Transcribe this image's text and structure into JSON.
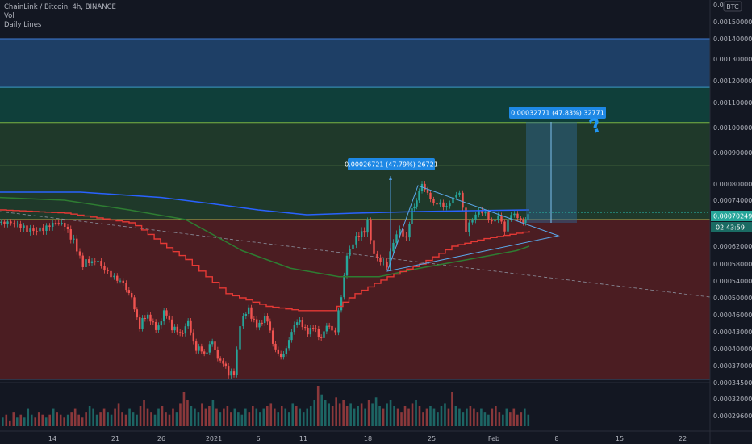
{
  "header": {
    "symbol_line": "ChainLink / Bitcoin, 4h, BINANCE",
    "indicators": [
      "Vol",
      "Daily Lines"
    ]
  },
  "axis": {
    "currency_badge": "BTC",
    "top_label": "0.0",
    "current_price": "0.00070249",
    "countdown": "02:43:59"
  },
  "measures": [
    {
      "label": "0.00026721 (47.79%) 26721"
    },
    {
      "label": "0.00032771 (47.83%) 32771"
    }
  ],
  "annotation": {
    "symbol": "?"
  },
  "colors": {
    "background": "#131722",
    "up": "#26a69a",
    "down": "#ef5350",
    "blue_zone": "#1e3f66",
    "teal_zone": "#0f3f3a",
    "green_zone": "#22402c",
    "red_zone": "#4b1d22",
    "ma_blue": "#2962ff",
    "ma_green": "#2e7d32",
    "ma_red": "#e53935",
    "measure_box": "#2f6a9a",
    "badge_green": "#26a69a",
    "badge_blue": "#1e88e5"
  },
  "chart_data": {
    "type": "candlestick",
    "ylim": [
      0.00034,
      0.0016
    ],
    "y_ticks": [
      "0.00150000",
      "0.00140000",
      "0.00130000",
      "0.00120000",
      "0.00110000",
      "0.00100000",
      "0.00090000",
      "0.00080000",
      "0.00074000",
      "0.00066000",
      "0.00062000",
      "0.00058000",
      "0.00054000",
      "0.00050000",
      "0.00046000",
      "0.00043000",
      "0.00040000",
      "0.00037000",
      "0.00034500",
      "0.00032000",
      "0.00029600"
    ],
    "x_ticks": [
      "14",
      "21",
      "26",
      "2021",
      "6",
      "11",
      "18",
      "25",
      "Feb",
      "8",
      "15",
      "22"
    ],
    "levels": {
      "blue_zone_top": 0.0014,
      "blue_zone_bottom": 0.00117,
      "teal_zone_bottom": 0.00102,
      "green_line": 0.00086,
      "red_zone_top": 0.00068,
      "red_zone_bottom": 0.00035
    },
    "price_path": [
      [
        0,
        0.00067
      ],
      [
        20,
        0.00066
      ],
      [
        40,
        0.00066
      ],
      [
        60,
        0.00065
      ],
      [
        75,
        0.00067
      ],
      [
        90,
        0.00064
      ],
      [
        105,
        0.00058
      ],
      [
        120,
        0.00059
      ],
      [
        140,
        0.00056
      ],
      [
        155,
        0.00053
      ],
      [
        165,
        0.0005
      ],
      [
        175,
        0.00044
      ],
      [
        185,
        0.00046
      ],
      [
        195,
        0.00043
      ],
      [
        205,
        0.00047
      ],
      [
        215,
        0.00044
      ],
      [
        225,
        0.00042
      ],
      [
        235,
        0.00045
      ],
      [
        245,
        0.0004
      ],
      [
        255,
        0.00039
      ],
      [
        265,
        0.00041
      ],
      [
        275,
        0.00038
      ],
      [
        285,
        0.00036
      ],
      [
        292,
        0.000355
      ],
      [
        300,
        0.00044
      ],
      [
        310,
        0.00047
      ],
      [
        320,
        0.00044
      ],
      [
        330,
        0.00046
      ],
      [
        340,
        0.00041
      ],
      [
        350,
        0.00038
      ],
      [
        360,
        0.00042
      ],
      [
        370,
        0.00045
      ],
      [
        380,
        0.00043
      ],
      [
        390,
        0.00044
      ],
      [
        400,
        0.00042
      ],
      [
        410,
        0.00044
      ],
      [
        418,
        0.00043
      ],
      [
        425,
        0.0005
      ],
      [
        432,
        0.0006
      ],
      [
        440,
        0.00063
      ],
      [
        450,
        0.00064
      ],
      [
        458,
        0.00068
      ],
      [
        466,
        0.0006
      ],
      [
        474,
        0.00058
      ],
      [
        482,
        0.00057
      ],
      [
        490,
        0.00063
      ],
      [
        498,
        0.00066
      ],
      [
        506,
        0.00064
      ],
      [
        512,
        0.00071
      ],
      [
        518,
        0.00074
      ],
      [
        525,
        0.00079
      ],
      [
        532,
        0.00076
      ],
      [
        540,
        0.00073
      ],
      [
        548,
        0.00072
      ],
      [
        556,
        0.00071
      ],
      [
        564,
        0.00075
      ],
      [
        572,
        0.00078
      ],
      [
        580,
        0.00066
      ],
      [
        588,
        0.00068
      ],
      [
        596,
        0.0007
      ],
      [
        604,
        0.00069
      ],
      [
        612,
        0.00067
      ],
      [
        620,
        0.0007
      ],
      [
        628,
        0.00066
      ],
      [
        636,
        0.0007
      ],
      [
        644,
        0.00068
      ],
      [
        650,
        0.00066
      ],
      [
        656,
        0.000702
      ]
    ],
    "series": [
      {
        "name": "",
        "color": "#2962ff",
        "points": [
          [
            0,
            0.00077
          ],
          [
            100,
            0.00077
          ],
          [
            200,
            0.00075
          ],
          [
            260,
            0.00073
          ],
          [
            320,
            0.00071
          ],
          [
            380,
            0.000695
          ],
          [
            440,
            0.0007
          ],
          [
            520,
            0.000705
          ],
          [
            600,
            0.000708
          ],
          [
            656,
            0.00071
          ]
        ]
      },
      {
        "name": "",
        "color": "#2e7d32",
        "points": [
          [
            0,
            0.00075
          ],
          [
            80,
            0.00074
          ],
          [
            160,
            0.00071
          ],
          [
            230,
            0.00068
          ],
          [
            300,
            0.00061
          ],
          [
            360,
            0.00057
          ],
          [
            420,
            0.00055
          ],
          [
            470,
            0.00055
          ],
          [
            520,
            0.00057
          ],
          [
            580,
            0.00059
          ],
          [
            640,
            0.00061
          ],
          [
            656,
            0.00062
          ]
        ]
      },
      {
        "name": "",
        "color": "#e53935",
        "points": [
          [
            0,
            0.00071
          ],
          [
            80,
            0.0007
          ],
          [
            160,
            0.00067
          ],
          [
            230,
            0.00059
          ],
          [
            280,
            0.00051
          ],
          [
            330,
            0.00048
          ],
          [
            370,
            0.00047
          ],
          [
            410,
            0.00047
          ],
          [
            440,
            0.00051
          ],
          [
            480,
            0.00055
          ],
          [
            520,
            0.00058
          ],
          [
            560,
            0.00062
          ],
          [
            600,
            0.000635
          ],
          [
            656,
            0.00065
          ]
        ]
      }
    ],
    "volume": [
      3,
      4,
      2,
      5,
      3,
      4,
      3,
      6,
      4,
      3,
      5,
      4,
      3,
      4,
      6,
      5,
      4,
      3,
      4,
      5,
      6,
      4,
      3,
      5,
      7,
      6,
      4,
      5,
      6,
      5,
      4,
      6,
      8,
      5,
      4,
      6,
      5,
      4,
      7,
      9,
      6,
      5,
      4,
      6,
      7,
      5,
      4,
      6,
      5,
      8,
      12,
      9,
      7,
      6,
      5,
      8,
      6,
      7,
      9,
      6,
      5,
      6,
      7,
      5,
      6,
      5,
      4,
      6,
      5,
      7,
      6,
      5,
      6,
      7,
      8,
      6,
      5,
      7,
      6,
      5,
      8,
      7,
      6,
      5,
      6,
      7,
      9,
      14,
      11,
      9,
      8,
      7,
      10,
      8,
      9,
      7,
      8,
      6,
      7,
      8,
      6,
      9,
      8,
      10,
      7,
      6,
      8,
      9,
      7,
      6,
      5,
      7,
      6,
      8,
      9,
      7,
      5,
      6,
      7,
      6,
      5,
      7,
      8,
      6,
      12,
      7,
      6,
      5,
      6,
      7,
      6,
      5,
      6,
      5,
      4,
      6,
      7,
      5,
      4,
      6,
      5,
      6,
      4,
      5,
      6,
      4
    ]
  }
}
